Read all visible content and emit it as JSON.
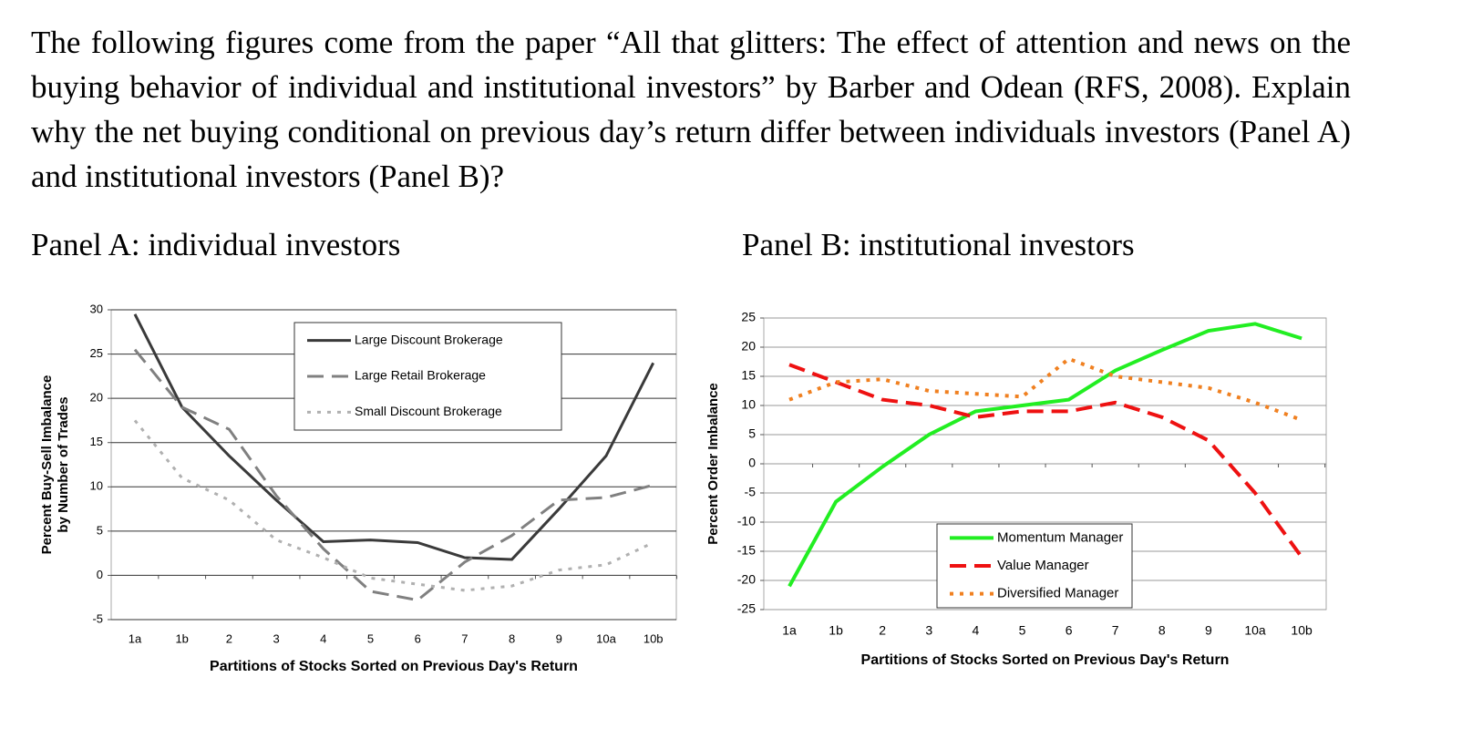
{
  "question": "The following figures come from the paper “All that glitters: The effect of attention and news on the buying behavior of individual and institutional investors” by Barber and Odean (RFS, 2008). Explain why the net buying conditional on previous day’s return differ between individuals investors (Panel A) and institutional investors (Panel B)?",
  "chart_data": [
    {
      "type": "line",
      "title": "Panel A: individual investors",
      "categories": [
        "1a",
        "1b",
        "2",
        "3",
        "4",
        "5",
        "6",
        "7",
        "8",
        "9",
        "10a",
        "10b"
      ],
      "xlabel": "Partitions of Stocks Sorted on Previous Day's Return",
      "ylabel": [
        "Percent Buy-Sell Imbalance",
        "by Number of Trades"
      ],
      "ylim": [
        -5,
        30
      ],
      "yticks": [
        -5,
        0,
        5,
        10,
        15,
        20,
        25,
        30
      ],
      "grid": true,
      "legend": "top-center",
      "series": [
        {
          "name": "Large Discount Brokerage",
          "color": "#3a3a3a",
          "style": "solid",
          "values": [
            29.5,
            19,
            13.5,
            8.5,
            3.8,
            4.0,
            3.7,
            2.0,
            1.8,
            7.5,
            13.5,
            24
          ]
        },
        {
          "name": "Large Retail Brokerage",
          "color": "#808080",
          "style": "dashed",
          "values": [
            25.5,
            19,
            16.5,
            9,
            3,
            -1.8,
            -2.8,
            1.5,
            4.5,
            8.5,
            8.8,
            10.2
          ]
        },
        {
          "name": "Small Discount Brokerage",
          "color": "#b0b0b0",
          "style": "dotted",
          "values": [
            17.5,
            11,
            8.5,
            4,
            2,
            -0.3,
            -1,
            -1.7,
            -1.2,
            0.6,
            1.2,
            3.7
          ]
        }
      ]
    },
    {
      "type": "line",
      "title": "Panel B: institutional investors",
      "categories": [
        "1a",
        "1b",
        "2",
        "3",
        "4",
        "5",
        "6",
        "7",
        "8",
        "9",
        "10a",
        "10b"
      ],
      "xlabel": "Partitions of Stocks Sorted on Previous Day's Return",
      "ylabel": [
        "Percent Order Imbalance"
      ],
      "ylim": [
        -25,
        25
      ],
      "yticks": [
        -25,
        -20,
        -15,
        -10,
        -5,
        0,
        5,
        10,
        15,
        20,
        25
      ],
      "grid": true,
      "legend": "bottom-right",
      "series": [
        {
          "name": "Momentum Manager",
          "color": "#22ee22",
          "style": "solid",
          "values": [
            -21,
            -6.5,
            -0.5,
            5,
            9,
            10,
            11,
            16,
            19.5,
            22.8,
            24,
            21.5
          ]
        },
        {
          "name": "Value Manager",
          "color": "#ee1111",
          "style": "dashed",
          "values": [
            17,
            14,
            11,
            10,
            8,
            9,
            9,
            10.5,
            8,
            4,
            -5,
            -16
          ]
        },
        {
          "name": "Diversified Manager",
          "color": "#f08020",
          "style": "dotted",
          "values": [
            11,
            14,
            14.5,
            12.5,
            12,
            11.5,
            18,
            15,
            14,
            13,
            10.5,
            7.5
          ]
        }
      ]
    }
  ]
}
